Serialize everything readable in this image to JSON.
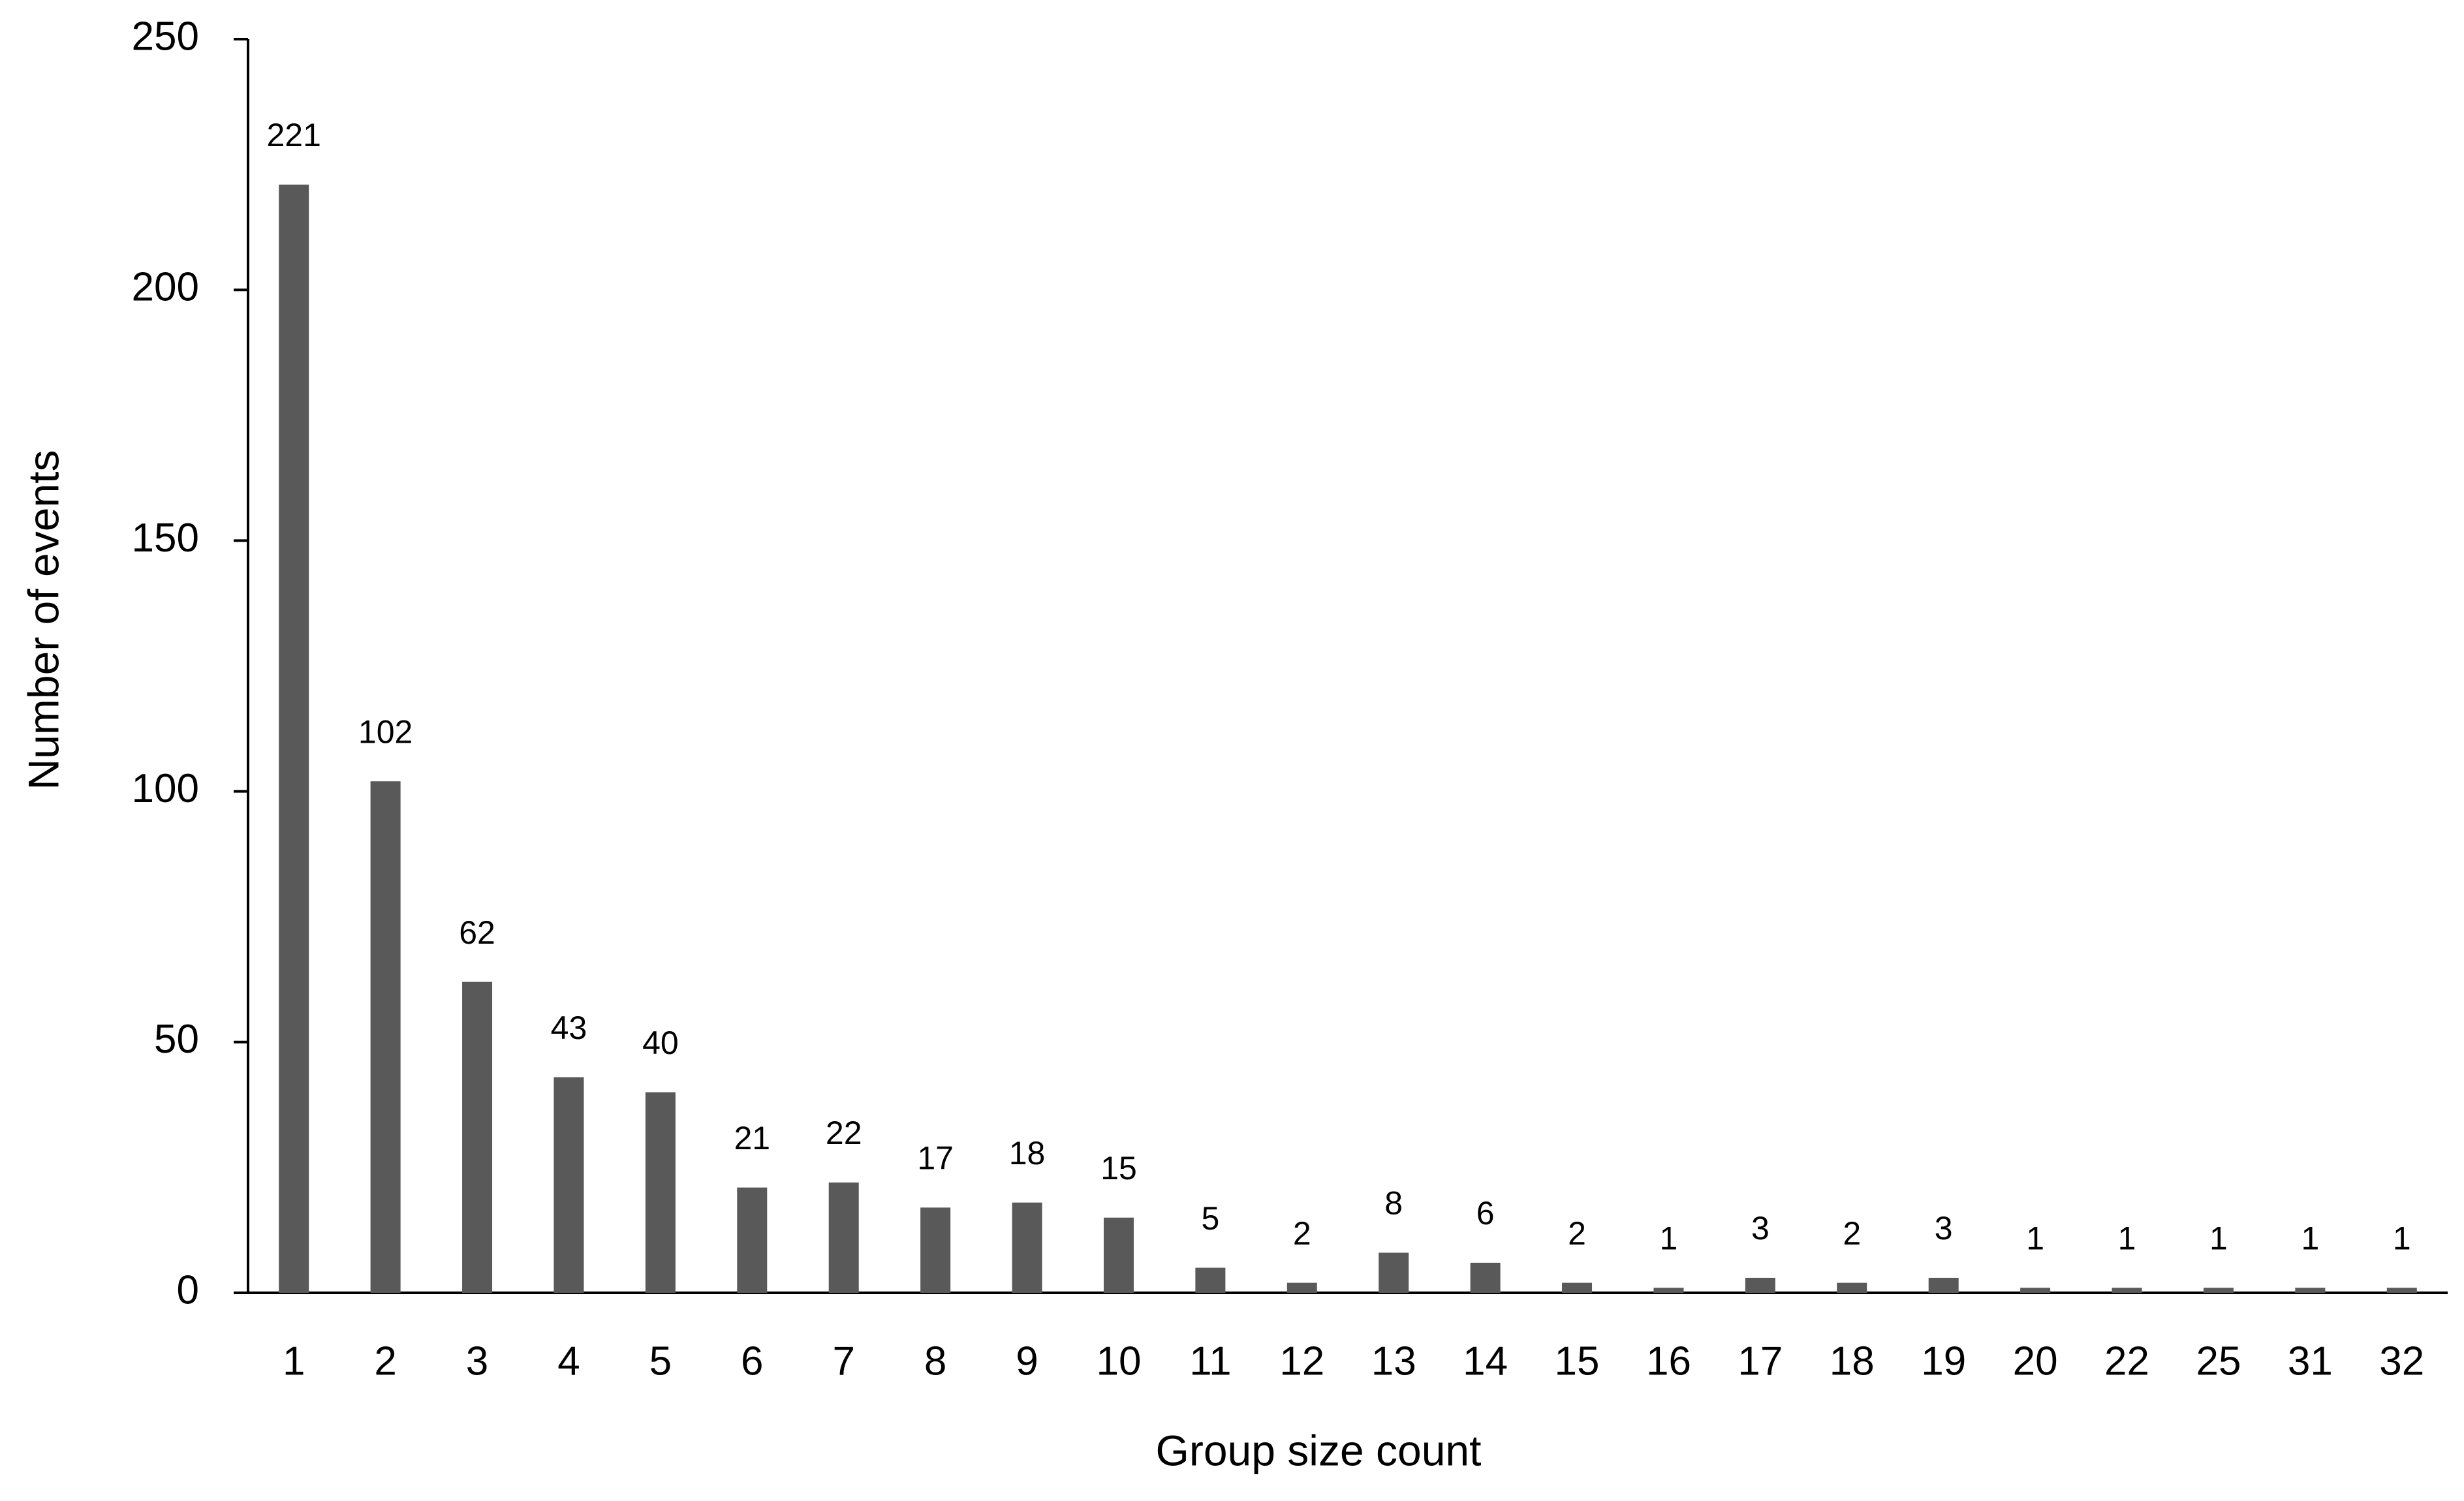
{
  "chart_data": {
    "type": "bar",
    "x_label": "Group size count",
    "y_label": "Number of events",
    "categories": [
      "1",
      "2",
      "3",
      "4",
      "5",
      "6",
      "7",
      "8",
      "9",
      "10",
      "11",
      "12",
      "13",
      "14",
      "15",
      "16",
      "17",
      "18",
      "19",
      "20",
      "22",
      "25",
      "31",
      "32"
    ],
    "values": [
      221,
      102,
      62,
      43,
      40,
      21,
      22,
      17,
      18,
      15,
      5,
      2,
      8,
      6,
      2,
      1,
      3,
      2,
      3,
      1,
      1,
      1,
      1,
      1
    ],
    "color": "#595959",
    "ylim": [
      0,
      250
    ],
    "yticks": [
      0,
      50,
      100,
      150,
      200,
      250
    ],
    "grid": false
  }
}
